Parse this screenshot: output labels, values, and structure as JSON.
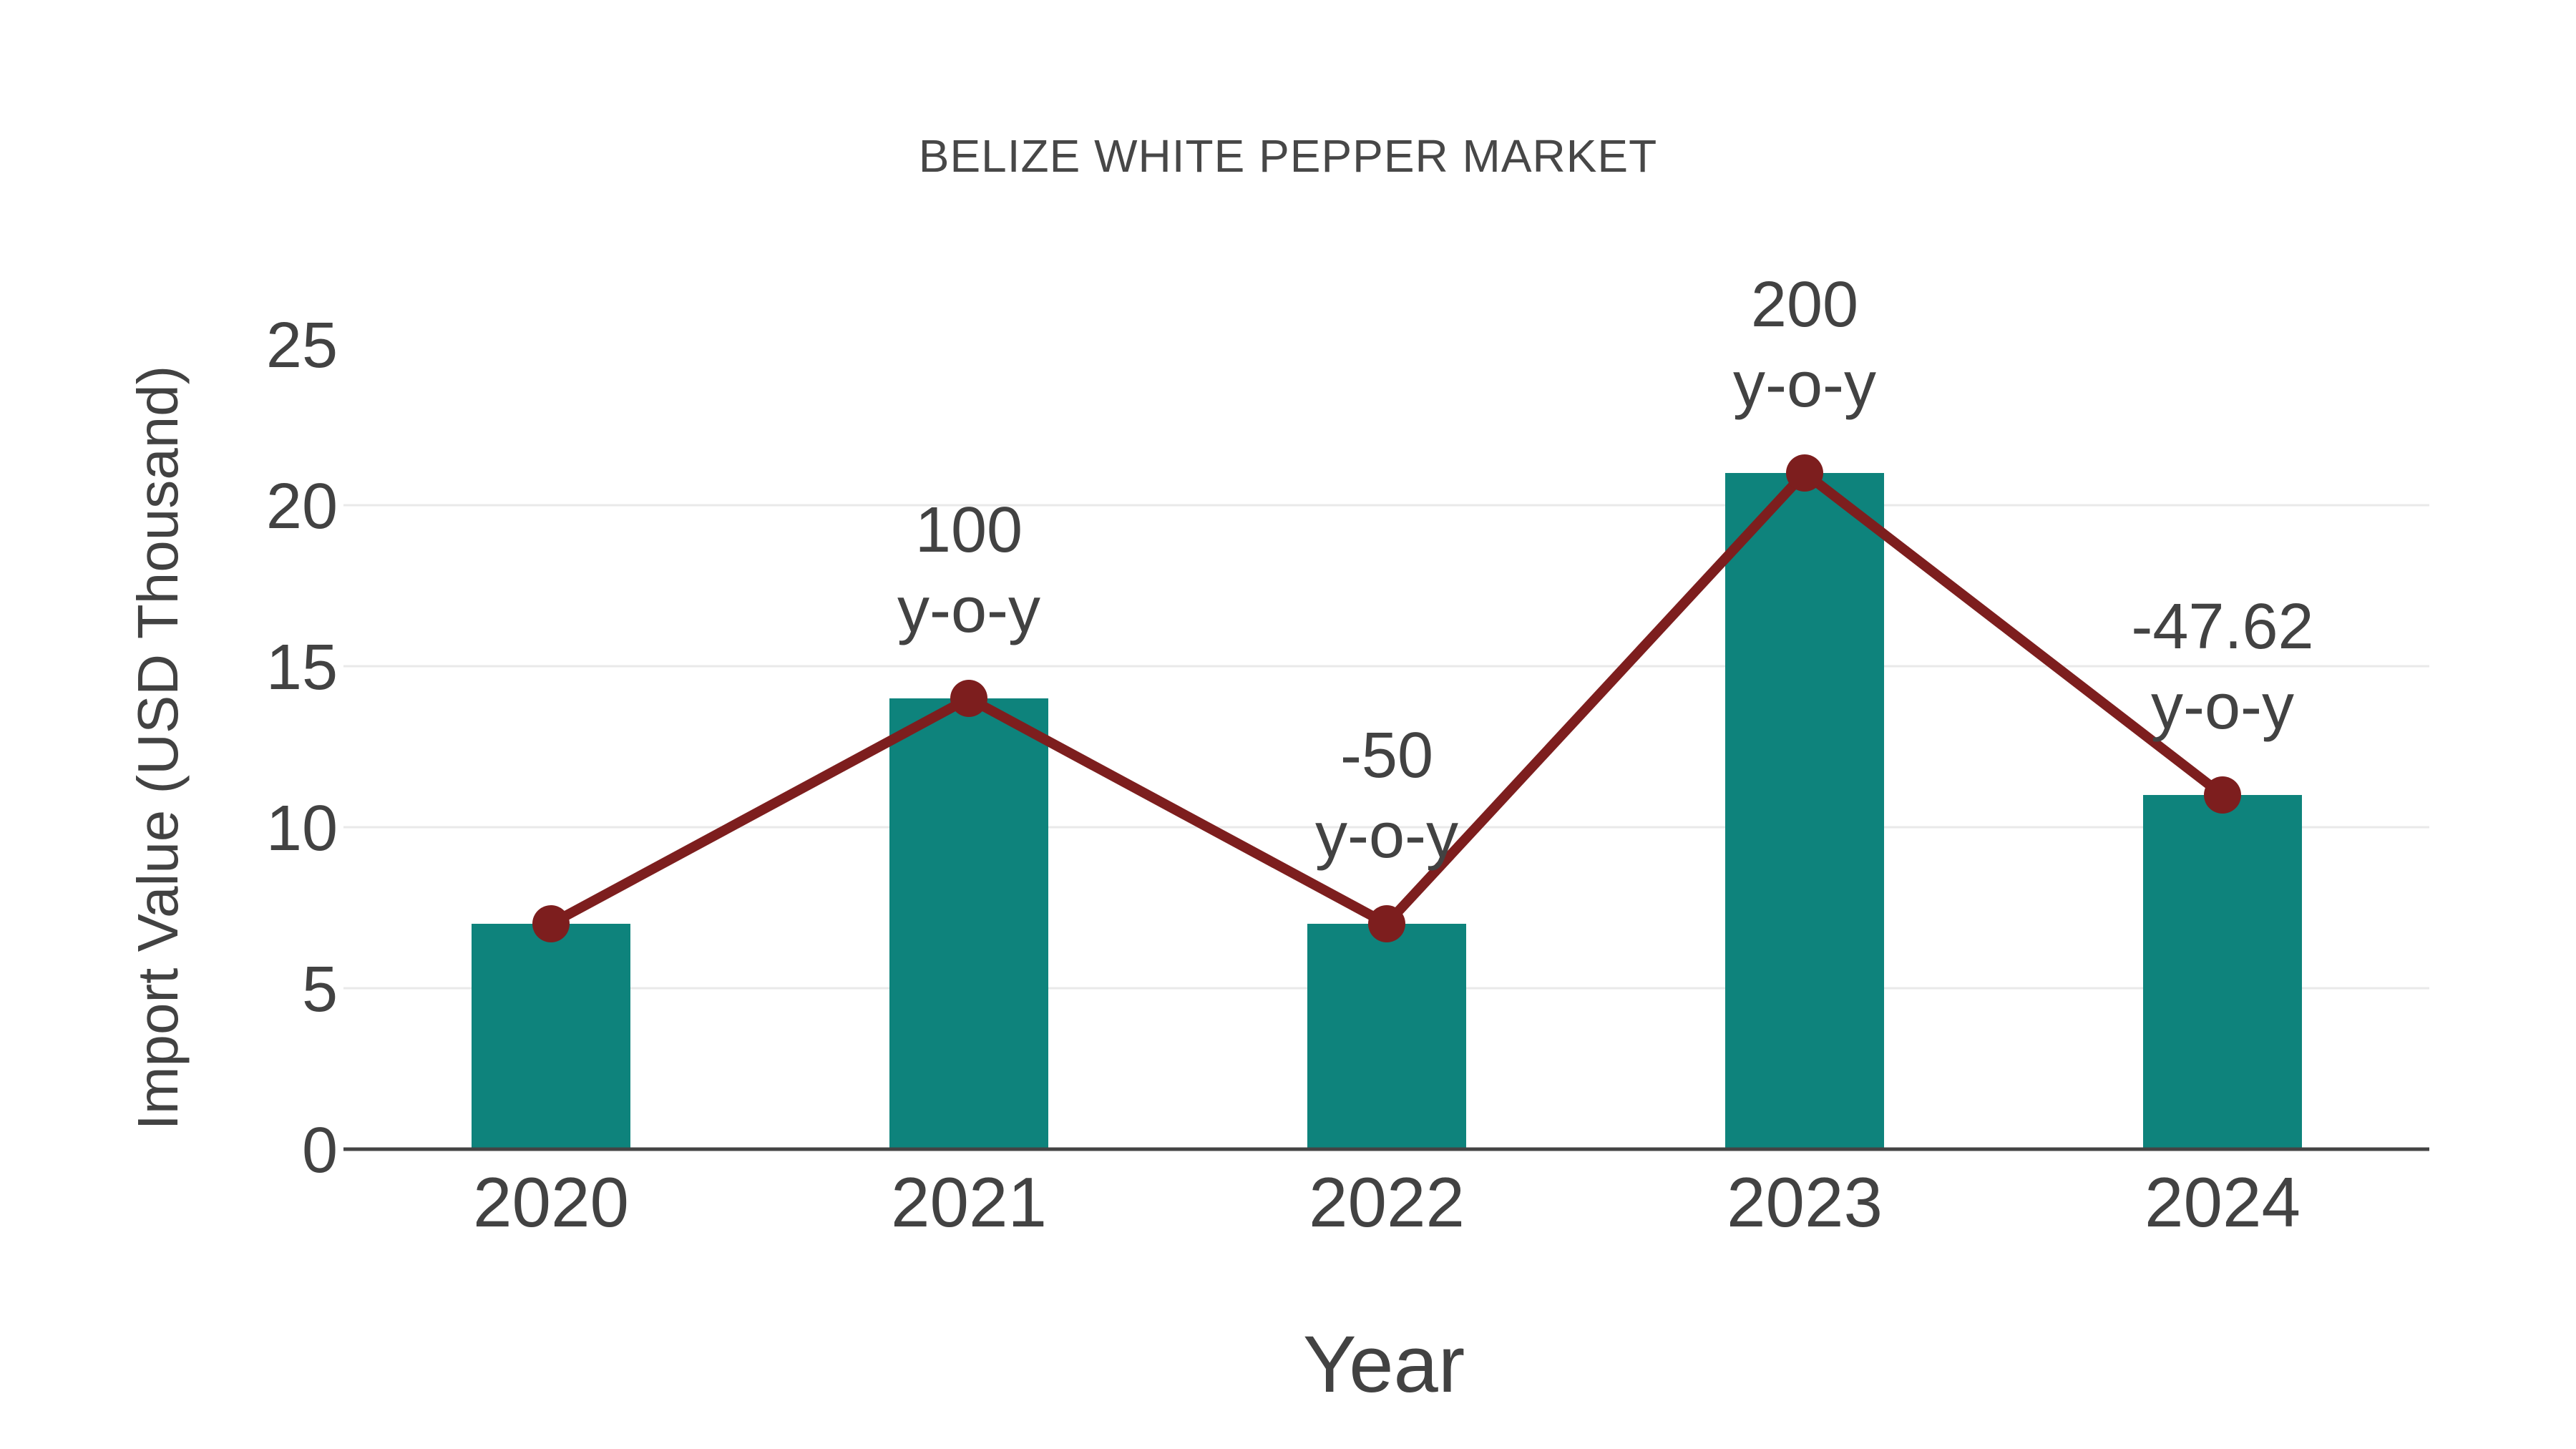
{
  "page": {
    "background": "#ffffff"
  },
  "chart_data": {
    "type": "bar",
    "title": "BELIZE WHITE PEPPER MARKET",
    "xlabel": "Year",
    "ylabel": "Import Value (USD Thousand)",
    "categories": [
      "2020",
      "2021",
      "2022",
      "2023",
      "2024"
    ],
    "series": [
      {
        "name": "import-value-bars",
        "type": "bar",
        "values": [
          7,
          14,
          7,
          21,
          11
        ],
        "color": "#0E837C"
      },
      {
        "name": "import-value-line",
        "type": "line",
        "values": [
          7,
          14,
          7,
          21,
          11
        ],
        "color": "#7D1E1E"
      }
    ],
    "annotations": [
      {
        "category": "2021",
        "lines": [
          "100",
          "y-o-y"
        ]
      },
      {
        "category": "2022",
        "lines": [
          "-50",
          "y-o-y"
        ]
      },
      {
        "category": "2023",
        "lines": [
          "200",
          "y-o-y"
        ]
      },
      {
        "category": "2024",
        "lines": [
          "-47.62",
          "y-o-y"
        ]
      }
    ],
    "ylim": [
      0,
      25
    ],
    "yticks": [
      0,
      5,
      10,
      15,
      20,
      25
    ],
    "gridline_ticks": [
      5,
      10,
      15,
      20
    ],
    "grid": true,
    "legend": "none",
    "colors": {
      "bar": "#0E837C",
      "line": "#7D1E1E",
      "marker": "#7D1E1E",
      "gridline": "#E9E9E9",
      "axis_line": "#444444",
      "tick_text": "#424242",
      "annotation_text": "#424242",
      "title_text": "#474747"
    }
  }
}
